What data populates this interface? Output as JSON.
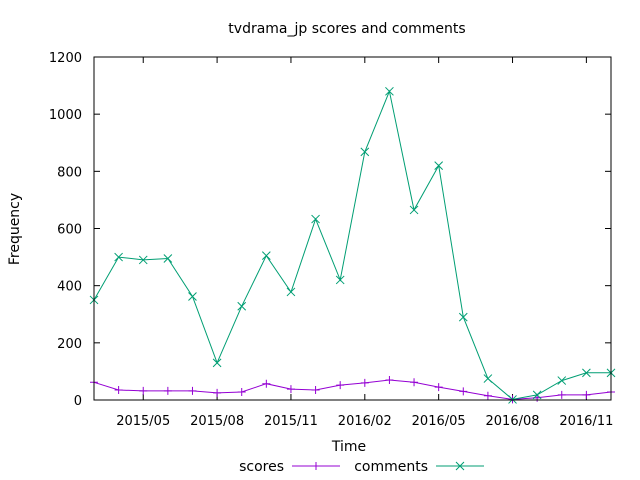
{
  "chart_data": {
    "type": "line",
    "title": "tvdrama_jp scores and comments",
    "xlabel": "Time",
    "ylabel": "Frequency",
    "x": [
      "2015-03",
      "2015-04",
      "2015-05",
      "2015-06",
      "2015-07",
      "2015-08",
      "2015-09",
      "2015-10",
      "2015-11",
      "2015-12",
      "2016-01",
      "2016-02",
      "2016-03",
      "2016-04",
      "2016-05",
      "2016-06",
      "2016-07",
      "2016-08",
      "2016-09",
      "2016-10",
      "2016-11",
      "2016-12"
    ],
    "xlim": [
      "2015-03",
      "2016-12"
    ],
    "xticks": [
      "2015-05",
      "2015-08",
      "2015-11",
      "2016-02",
      "2016-05",
      "2016-08",
      "2016-11"
    ],
    "xtick_labels": [
      "2015/05",
      "2015/08",
      "2015/11",
      "2016/02",
      "2016/05",
      "2016/08",
      "2016/11"
    ],
    "ylim": [
      0,
      1200
    ],
    "yticks": [
      0,
      200,
      400,
      600,
      800,
      1000,
      1200
    ],
    "grid": false,
    "legend_position": "bottom-center",
    "series": [
      {
        "name": "scores",
        "color": "#9400d3",
        "marker": "plus",
        "values": [
          62,
          35,
          32,
          32,
          32,
          25,
          28,
          57,
          38,
          35,
          52,
          60,
          70,
          62,
          45,
          30,
          15,
          2,
          8,
          18,
          18,
          28
        ]
      },
      {
        "name": "comments",
        "color": "#009e73",
        "marker": "cross",
        "values": [
          350,
          500,
          490,
          495,
          362,
          130,
          328,
          505,
          378,
          633,
          420,
          868,
          1080,
          665,
          820,
          290,
          75,
          2,
          18,
          68,
          95,
          95
        ]
      }
    ]
  }
}
